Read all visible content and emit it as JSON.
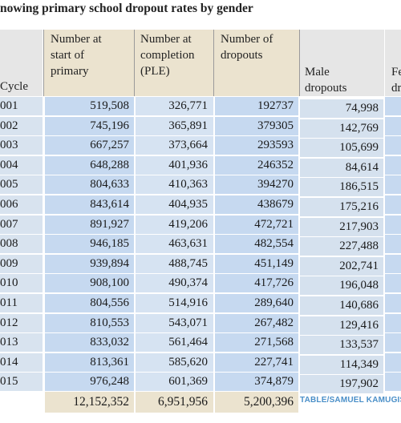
{
  "title": "nowing primary school dropout rates by gender",
  "headers": {
    "cycle": "Cycle",
    "start": [
      "Number at",
      "start of",
      "primary"
    ],
    "completion": [
      "Number at",
      "completion",
      "(PLE)"
    ],
    "dropouts": [
      "Number of",
      "dropouts"
    ],
    "male": [
      "Male",
      "dropouts"
    ],
    "female": [
      "Fe",
      "dr"
    ]
  },
  "rows": [
    {
      "cycle": "001",
      "start": "519,508",
      "completion": "326,771",
      "dropouts": "192737",
      "male": "74,998"
    },
    {
      "cycle": "002",
      "start": "745,196",
      "completion": "365,891",
      "dropouts": "379305",
      "male": "142,769"
    },
    {
      "cycle": "003",
      "start": "667,257",
      "completion": "373,664",
      "dropouts": "293593",
      "male": "105,699"
    },
    {
      "cycle": "004",
      "start": "648,288",
      "completion": "401,936",
      "dropouts": "246352",
      "male": "84,614"
    },
    {
      "cycle": "005",
      "start": "804,633",
      "completion": "410,363",
      "dropouts": "394270",
      "male": "186,515"
    },
    {
      "cycle": "006",
      "start": "843,614",
      "completion": "404,935",
      "dropouts": "438679",
      "male": "175,216"
    },
    {
      "cycle": "007",
      "start": "891,927",
      "completion": "419,206",
      "dropouts": "472,721",
      "male": "217,903"
    },
    {
      "cycle": "008",
      "start": "946,185",
      "completion": "463,631",
      "dropouts": "482,554",
      "male": "227,488"
    },
    {
      "cycle": "009",
      "start": "939,894",
      "completion": "488,745",
      "dropouts": "451,149",
      "male": "202,741"
    },
    {
      "cycle": "010",
      "start": "908,100",
      "completion": "490,374",
      "dropouts": "417,726",
      "male": "196,048"
    },
    {
      "cycle": "011",
      "start": "804,556",
      "completion": "514,916",
      "dropouts": "289,640",
      "male": "140,686"
    },
    {
      "cycle": "012",
      "start": "810,553",
      "completion": "543,071",
      "dropouts": "267,482",
      "male": "129,416"
    },
    {
      "cycle": "013",
      "start": "833,032",
      "completion": "561,464",
      "dropouts": "271,568",
      "male": "133,537"
    },
    {
      "cycle": "014",
      "start": "813,361",
      "completion": "585,620",
      "dropouts": "227,741",
      "male": "114,349"
    },
    {
      "cycle": "015",
      "start": "976,248",
      "completion": "601,369",
      "dropouts": "374,879",
      "male": "197,902"
    }
  ],
  "totals": {
    "start": "12,152,352",
    "completion": "6,951,956",
    "dropouts": "5,200,396"
  },
  "credit": "TABLE/SAMUEL KAMUGISHA"
}
